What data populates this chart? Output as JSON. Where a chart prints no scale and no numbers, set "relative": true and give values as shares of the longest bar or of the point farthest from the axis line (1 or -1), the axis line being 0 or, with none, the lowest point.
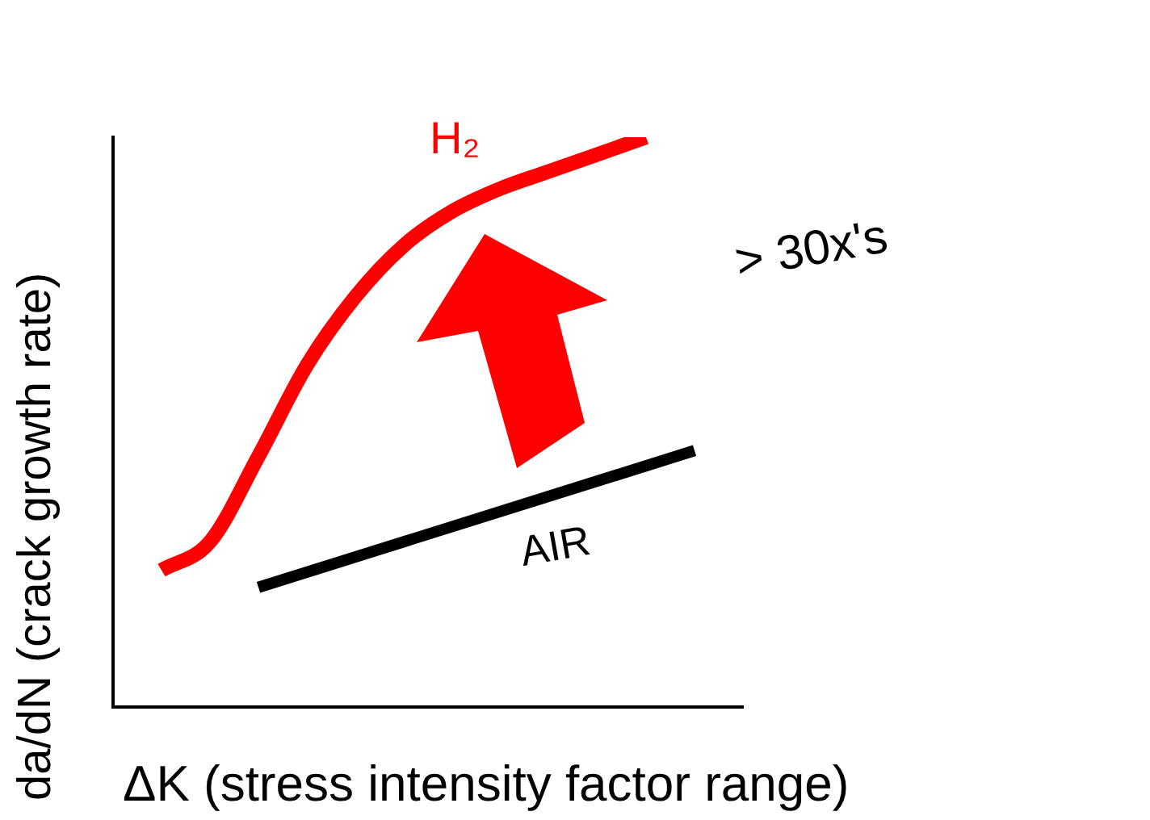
{
  "chart_data": {
    "type": "line",
    "relative": true,
    "xlabel": "ΔK (stress intensity factor range)",
    "ylabel": "da/dN (crack growth rate)",
    "categories": [
      null,
      null,
      null,
      null,
      null,
      null,
      null,
      null,
      null,
      null,
      null,
      null,
      null,
      null
    ],
    "series": [
      {
        "name": "H₂",
        "color": "#ff0000",
        "values": [
          null,
          0.24,
          0.29,
          0.44,
          0.6,
          0.72,
          0.81,
          0.87,
          0.91,
          0.94,
          0.97,
          1.0,
          null,
          null
        ]
      },
      {
        "name": "AIR",
        "color": "#000000",
        "values": [
          null,
          null,
          null,
          0.21,
          null,
          null,
          null,
          null,
          null,
          null,
          null,
          null,
          0.45,
          null
        ]
      }
    ],
    "annotations": [
      "> 30x's"
    ],
    "legend": false,
    "grid": false,
    "marker": "none",
    "line_style": "solid"
  }
}
